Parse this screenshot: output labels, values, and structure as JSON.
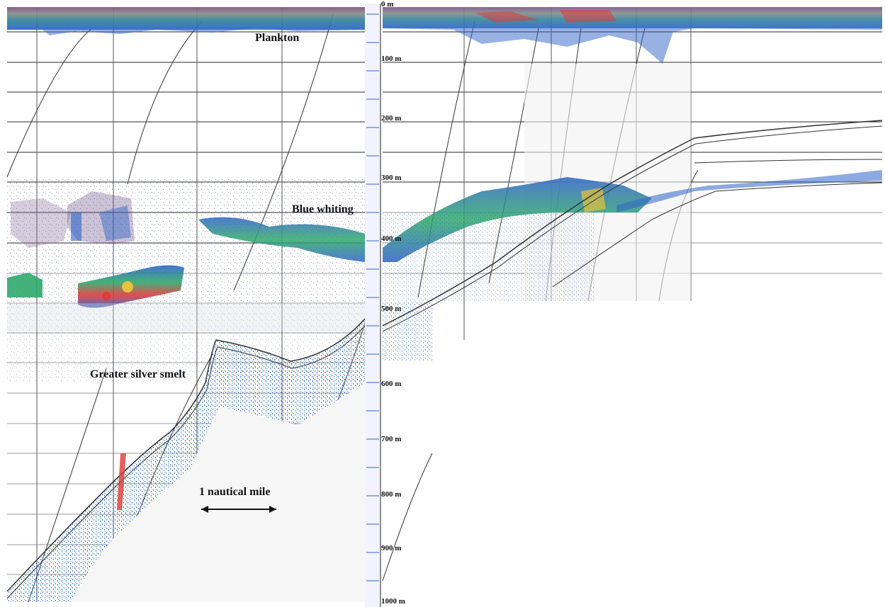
{
  "annotations": {
    "plankton": "Plankton",
    "blue_whiting": "Blue whiting",
    "greater_silver_smelt": "Greater silver smelt",
    "scale_bar": "1 nautical mile"
  },
  "depth_labels": [
    "0 m",
    "100 m",
    "200 m",
    "300 m",
    "400 m",
    "500 m",
    "600 m",
    "700 m",
    "800 m",
    "900 m",
    "1000 m"
  ],
  "colors": {
    "background": "#ffffff",
    "grid": "#2a2a2a",
    "bottom_line": "#333333",
    "echo_weak": "#2f63c8",
    "echo_medium": "#2fa86b",
    "echo_strong": "#e7c23a",
    "echo_very_strong": "#e03a3a",
    "scatter": "#8a6f9a"
  },
  "icons": {
    "scale_bar": "double-arrow"
  }
}
